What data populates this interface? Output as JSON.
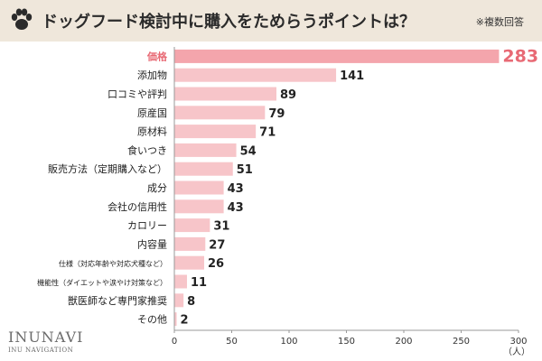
{
  "header": {
    "title": "ドッグフード検討中に購入をためらうポイントは？",
    "note": "※複数回答"
  },
  "brand": {
    "name": "INUNAVI",
    "sub": "INU NAVIGATION"
  },
  "colors": {
    "header_bg": "#efe7db",
    "bar_fill": "#f7c5c9",
    "bar_highlight": "#f4a5ac",
    "highlight_text": "#e86a75"
  },
  "chart_data": {
    "type": "bar",
    "orientation": "horizontal",
    "title": "ドッグフード検討中に購入をためらうポイントは？",
    "categories": [
      "価格",
      "添加物",
      "口コミや評判",
      "原産国",
      "原材料",
      "食いつき",
      "販売方法（定期購入など）",
      "成分",
      "会社の信用性",
      "カロリー",
      "内容量",
      "仕様（対応年齢や対応犬種など）",
      "機能性（ダイエットや涙やけ対策など）",
      "獣医師など専門家推奨",
      "その他"
    ],
    "values": [
      283,
      141,
      89,
      79,
      71,
      54,
      51,
      43,
      43,
      31,
      27,
      26,
      11,
      8,
      2
    ],
    "highlight_index": 0,
    "xlim": [
      0,
      300
    ],
    "xticks": [
      0,
      50,
      100,
      150,
      200,
      250,
      300
    ],
    "xunit": "（人）",
    "xlabel": "",
    "ylabel": ""
  }
}
